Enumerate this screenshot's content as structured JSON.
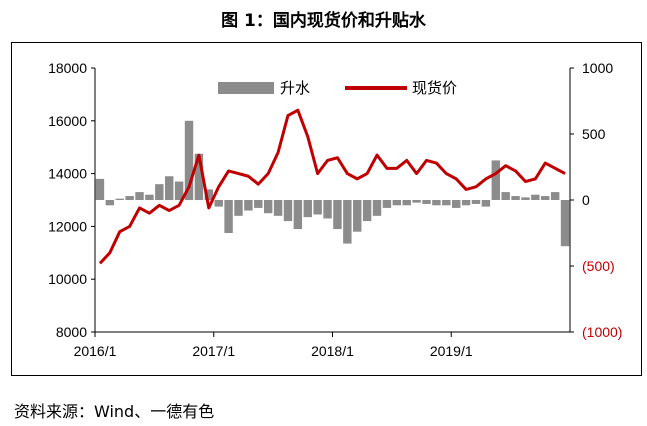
{
  "title": "图 1：国内现货价和升贴水",
  "source": "资料来源：Wind、一德有色",
  "colors": {
    "spot": "#c00000",
    "premium": "#8c8c8c",
    "neg_tick": "#c00000"
  },
  "chart_data": {
    "type": "bar+line",
    "title": "图 1：国内现货价和升贴水",
    "legend": {
      "placement": "top-center",
      "entries": [
        "升水",
        "现货价"
      ]
    },
    "x_axis": {
      "tick_labels": [
        "2016/1",
        "2017/1",
        "2018/1",
        "2019/1"
      ],
      "range": [
        "2016-01",
        "2019-12"
      ]
    },
    "y_left": {
      "range": [
        8000,
        18000
      ],
      "ticks": [
        "8000",
        "10000",
        "12000",
        "14000",
        "16000",
        "18000"
      ]
    },
    "y_right": {
      "range": [
        -1000,
        1000
      ],
      "ticks": [
        "(1000)",
        "(500)",
        "0",
        "500",
        "1000"
      ]
    },
    "grid": false,
    "series": [
      {
        "name": "升水",
        "type": "bar",
        "axis": "right",
        "x": [
          "2016-01",
          "2016-02",
          "2016-03",
          "2016-04",
          "2016-05",
          "2016-06",
          "2016-07",
          "2016-08",
          "2016-09",
          "2016-10",
          "2016-11",
          "2016-12",
          "2017-01",
          "2017-02",
          "2017-03",
          "2017-04",
          "2017-05",
          "2017-06",
          "2017-07",
          "2017-08",
          "2017-09",
          "2017-10",
          "2017-11",
          "2017-12",
          "2018-01",
          "2018-02",
          "2018-03",
          "2018-04",
          "2018-05",
          "2018-06",
          "2018-07",
          "2018-08",
          "2018-09",
          "2018-10",
          "2018-11",
          "2018-12",
          "2019-01",
          "2019-02",
          "2019-03",
          "2019-04",
          "2019-05",
          "2019-06",
          "2019-07",
          "2019-08",
          "2019-09",
          "2019-10",
          "2019-11",
          "2019-12"
        ],
        "values": [
          160,
          -40,
          10,
          30,
          60,
          40,
          120,
          180,
          140,
          600,
          350,
          80,
          -50,
          -250,
          -120,
          -80,
          -60,
          -100,
          -120,
          -160,
          -220,
          -130,
          -110,
          -140,
          -220,
          -330,
          -240,
          -160,
          -120,
          -60,
          -40,
          -40,
          -20,
          -30,
          -40,
          -40,
          -60,
          -40,
          -30,
          -50,
          300,
          60,
          30,
          20,
          40,
          30,
          60,
          -350
        ]
      },
      {
        "name": "现货价",
        "type": "line",
        "axis": "left",
        "x": [
          "2016-01",
          "2016-02",
          "2016-03",
          "2016-04",
          "2016-05",
          "2016-06",
          "2016-07",
          "2016-08",
          "2016-09",
          "2016-10",
          "2016-11",
          "2016-12",
          "2017-01",
          "2017-02",
          "2017-03",
          "2017-04",
          "2017-05",
          "2017-06",
          "2017-07",
          "2017-08",
          "2017-09",
          "2017-10",
          "2017-11",
          "2017-12",
          "2018-01",
          "2018-02",
          "2018-03",
          "2018-04",
          "2018-05",
          "2018-06",
          "2018-07",
          "2018-08",
          "2018-09",
          "2018-10",
          "2018-11",
          "2018-12",
          "2019-01",
          "2019-02",
          "2019-03",
          "2019-04",
          "2019-05",
          "2019-06",
          "2019-07",
          "2019-08",
          "2019-09",
          "2019-10",
          "2019-11",
          "2019-12"
        ],
        "values": [
          10600,
          11000,
          11800,
          12000,
          12700,
          12500,
          12800,
          12600,
          12800,
          13500,
          14700,
          12700,
          13500,
          14100,
          14000,
          13900,
          13600,
          14000,
          14800,
          16200,
          16400,
          15400,
          14000,
          14500,
          14600,
          14000,
          13800,
          14000,
          14700,
          14200,
          14200,
          14500,
          14000,
          14500,
          14400,
          14000,
          13800,
          13400,
          13500,
          13800,
          14000,
          14300,
          14100,
          13700,
          13800,
          14400,
          14200,
          14000
        ]
      }
    ]
  }
}
